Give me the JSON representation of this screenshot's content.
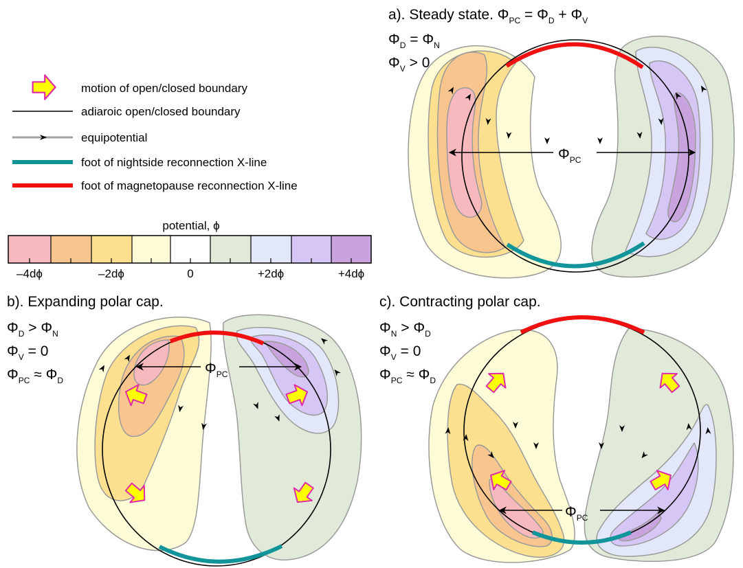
{
  "colors": {
    "neg4": "#f7b9bd",
    "neg3": "#f9c58f",
    "neg2": "#fde08f",
    "neg1": "#fdfcd6",
    "zero": "#ffffff",
    "pos1": "#e1ead9",
    "pos2": "#e2e8fa",
    "pos3": "#d6c6f5",
    "pos4": "#c8a3de",
    "boundary": "#000000",
    "equipotential": "#a0a0a0",
    "nightside": "#11959a",
    "magnetopause": "#f01010",
    "arrow_fill": "#ffff00",
    "arrow_edge": "#e02aa8"
  },
  "legend": {
    "items": [
      {
        "icon": "yellow-motion-arrow",
        "label": "motion of open/closed boundary"
      },
      {
        "icon": "thin-black-line",
        "label": "adiaroic open/closed boundary"
      },
      {
        "icon": "grey-arrowed-line",
        "label": "equipotential"
      },
      {
        "icon": "teal-thick-line",
        "label": "foot of nightside reconnection X-line"
      },
      {
        "icon": "red-thick-line",
        "label": "foot of magnetopause reconnection X-line"
      }
    ]
  },
  "colorbar": {
    "title": "potential, ϕ",
    "tick_labels": [
      "–4dϕ",
      "–2dϕ",
      "0",
      "+2dϕ",
      "+4dϕ"
    ]
  },
  "panels": {
    "a": {
      "title": "a). Steady state.",
      "phi": "Φ",
      "eq1_sub1": "PC",
      "eq1_mid": " = ",
      "eq1_sub2": "D",
      "eq1_plus": " + ",
      "eq1_sub3": "V",
      "eq2_sub1": "D",
      "eq2_op": " = ",
      "eq2_sub2": "N",
      "eq3_sub1": "V",
      "eq3_rest": " > 0",
      "span_sub": "PC"
    },
    "b": {
      "title": "b). Expanding polar cap.",
      "phi": "Φ",
      "eq1_sub1": "D",
      "eq1_op": " > ",
      "eq1_sub2": "N",
      "eq2_sub1": "V",
      "eq2_rest": " = 0",
      "eq3_sub1": "PC",
      "eq3_op": " ≈ ",
      "eq3_sub2": "D",
      "span_sub": "PC"
    },
    "c": {
      "title": "c). Contracting polar cap.",
      "phi": "Φ",
      "eq1_sub1": "N",
      "eq1_op": " > ",
      "eq1_sub2": "D",
      "eq2_sub1": "V",
      "eq2_rest": " = 0",
      "eq3_sub1": "PC",
      "eq3_op": " ≈ ",
      "eq3_sub2": "D",
      "span_sub": "PC"
    }
  }
}
